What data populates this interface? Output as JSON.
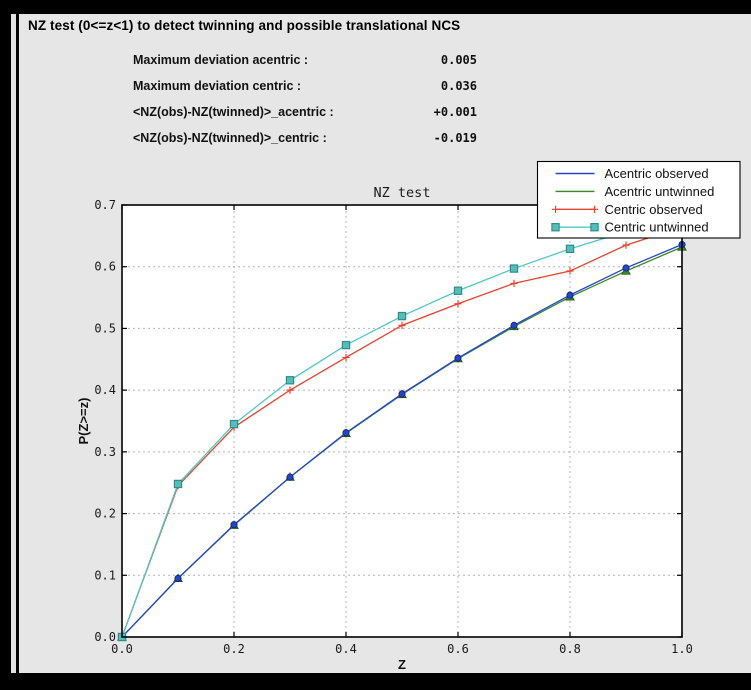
{
  "window": {
    "title": "NZ test (0<=z<1) to detect twinning and possible translational NCS"
  },
  "stats": [
    {
      "label": "Maximum deviation acentric :",
      "value": "0.005"
    },
    {
      "label": "Maximum deviation centric :",
      "value": "0.036"
    },
    {
      "label": "<NZ(obs)-NZ(twinned)>_acentric :",
      "value": "+0.001"
    },
    {
      "label": "<NZ(obs)-NZ(twinned)>_centric :",
      "value": "-0.019"
    }
  ],
  "chart_data": {
    "type": "line",
    "title": "NZ test",
    "xlabel": "Z",
    "ylabel": "P(Z>=z)",
    "xlim": [
      0.0,
      1.0
    ],
    "ylim": [
      0.0,
      0.7
    ],
    "xticks": [
      0.0,
      0.2,
      0.4,
      0.6,
      0.8,
      1.0
    ],
    "yticks": [
      0.0,
      0.1,
      0.2,
      0.3,
      0.4,
      0.5,
      0.6,
      0.7
    ],
    "grid": true,
    "legend_position": "top-right",
    "x": [
      0.0,
      0.1,
      0.2,
      0.3,
      0.4,
      0.5,
      0.6,
      0.7,
      0.8,
      0.9,
      1.0
    ],
    "series": [
      {
        "name": "Acentric observed",
        "color": "#2646c8",
        "marker": "circle",
        "marker_fill": "#2646c8",
        "marker_edge": "#14257a",
        "legend_end_markers": false,
        "values": [
          0.0,
          0.095,
          0.182,
          0.259,
          0.331,
          0.394,
          0.452,
          0.505,
          0.554,
          0.598,
          0.636
        ]
      },
      {
        "name": "Acentric untwinned",
        "color": "#3c8826",
        "marker": "triangle",
        "marker_fill": "#3c8826",
        "marker_edge": "#1e5214",
        "legend_end_markers": false,
        "values": [
          0.0,
          0.095,
          0.181,
          0.259,
          0.33,
          0.393,
          0.451,
          0.503,
          0.551,
          0.593,
          0.632
        ]
      },
      {
        "name": "Centric observed",
        "color": "#e8432e",
        "marker": "plus",
        "marker_fill": "#e8432e",
        "marker_edge": "#e8432e",
        "legend_end_markers": true,
        "values": [
          0.0,
          0.245,
          0.34,
          0.4,
          0.453,
          0.505,
          0.54,
          0.573,
          0.593,
          0.635,
          0.664
        ]
      },
      {
        "name": "Centric untwinned",
        "color": "#4fc8c6",
        "marker": "square",
        "marker_fill": "#5abcb9",
        "marker_edge": "#2a8f8b",
        "legend_end_markers": true,
        "values": [
          0.0,
          0.248,
          0.345,
          0.416,
          0.473,
          0.52,
          0.561,
          0.597,
          0.629,
          0.657,
          0.683
        ]
      }
    ],
    "colors": {
      "panel_bg": "#e6e6e6",
      "plot_bg": "#ffffff",
      "frame": "#000000",
      "grid": "#b3b3b3",
      "legend_bg": "#ffffff"
    }
  }
}
